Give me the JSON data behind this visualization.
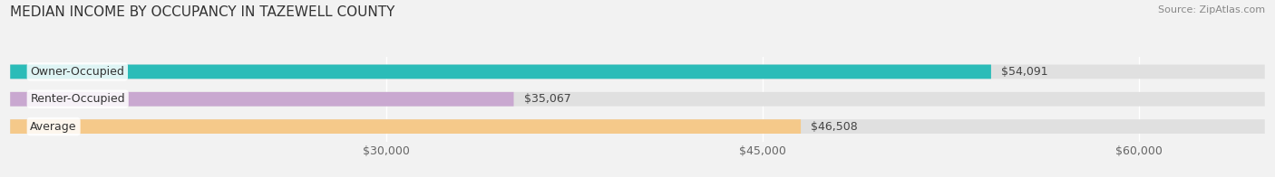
{
  "title": "MEDIAN INCOME BY OCCUPANCY IN TAZEWELL COUNTY",
  "source": "Source: ZipAtlas.com",
  "categories": [
    "Owner-Occupied",
    "Renter-Occupied",
    "Average"
  ],
  "values": [
    54091,
    35067,
    46508
  ],
  "bar_colors": [
    "#2bbcb8",
    "#c9a8d0",
    "#f5c98a"
  ],
  "value_labels": [
    "$54,091",
    "$35,067",
    "$46,508"
  ],
  "xmin": 15000,
  "xmax": 65000,
  "xticks": [
    30000,
    45000,
    60000
  ],
  "xtick_labels": [
    "$30,000",
    "$45,000",
    "$60,000"
  ],
  "background_color": "#f2f2f2",
  "bar_background_color": "#e0e0e0",
  "title_fontsize": 11,
  "source_fontsize": 8,
  "label_fontsize": 9,
  "value_fontsize": 9
}
